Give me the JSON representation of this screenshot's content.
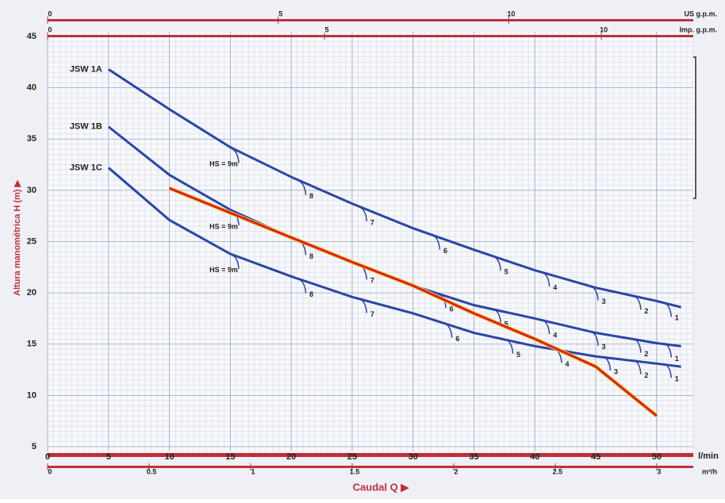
{
  "chart_data": {
    "type": "line",
    "y_label": "Altura manométrica H (m) ▶",
    "x_label": "Caudal Q ▶",
    "x_unit": "l/min",
    "xlim": [
      0,
      53
    ],
    "xticks": [
      0,
      5,
      10,
      15,
      20,
      25,
      30,
      35,
      40,
      45,
      50
    ],
    "ylim": [
      5,
      45
    ],
    "yticks": [
      5,
      10,
      15,
      20,
      25,
      30,
      35,
      40,
      45
    ],
    "grid": true,
    "x": [
      5,
      10,
      15,
      20,
      25,
      30,
      35,
      40,
      45,
      50,
      52
    ],
    "series": [
      {
        "name": "JSW 1A",
        "color": "#2b46a6",
        "values": [
          41.8,
          37.9,
          34.2,
          31.3,
          28.7,
          26.3,
          24.2,
          22.2,
          20.5,
          19.2,
          18.6
        ],
        "depths": [
          {
            "x": 15.5,
            "label": "HS = 9m"
          },
          {
            "x": 21,
            "label": "8"
          },
          {
            "x": 26,
            "label": "7"
          },
          {
            "x": 32,
            "label": "6"
          },
          {
            "x": 37,
            "label": "5"
          },
          {
            "x": 41,
            "label": "4"
          },
          {
            "x": 45,
            "label": "3"
          },
          {
            "x": 48.5,
            "label": "2"
          },
          {
            "x": 51,
            "label": "1"
          }
        ]
      },
      {
        "name": "JSW 1B",
        "color": "#2b46a6",
        "values": [
          36.2,
          31.5,
          28.1,
          25.4,
          23.0,
          20.7,
          18.8,
          17.5,
          16.1,
          15.1,
          14.8
        ],
        "depths": [
          {
            "x": 15.5,
            "label": "HS = 9m"
          },
          {
            "x": 21,
            "label": "8"
          },
          {
            "x": 26,
            "label": "7"
          },
          {
            "x": 32.5,
            "label": "6"
          },
          {
            "x": 37,
            "label": "5"
          },
          {
            "x": 41,
            "label": "4"
          },
          {
            "x": 45,
            "label": "3"
          },
          {
            "x": 48.5,
            "label": "2"
          },
          {
            "x": 51,
            "label": "1"
          }
        ]
      },
      {
        "name": "JSW 1C",
        "color": "#2b46a6",
        "values": [
          32.2,
          27.1,
          23.8,
          21.6,
          19.6,
          18.0,
          16.1,
          14.8,
          13.8,
          13.1,
          12.8
        ],
        "depths": [
          {
            "x": 15.5,
            "label": "HS = 9m"
          },
          {
            "x": 21,
            "label": "8"
          },
          {
            "x": 26,
            "label": "7"
          },
          {
            "x": 33,
            "label": "6"
          },
          {
            "x": 38,
            "label": "5"
          },
          {
            "x": 42,
            "label": "4"
          },
          {
            "x": 46,
            "label": "3"
          },
          {
            "x": 48.5,
            "label": "2"
          },
          {
            "x": 51,
            "label": "1"
          }
        ]
      },
      {
        "color": "#e0201c",
        "values": [
          null,
          30.2,
          27.8,
          25.4,
          23.0,
          20.7,
          18.0,
          15.5,
          12.8,
          8.0,
          null
        ]
      }
    ],
    "secondary_axes": [
      {
        "label": "US g.p.m.",
        "position": "top",
        "lim": [
          0,
          14.0
        ],
        "ticks": [
          0,
          5,
          10
        ]
      },
      {
        "label": "Imp. g.p.m.",
        "position": "top",
        "lim": [
          0,
          11.66
        ],
        "ticks": [
          0,
          5,
          10
        ]
      },
      {
        "label": "m³/h",
        "position": "bottom",
        "lim": [
          0,
          3.18
        ],
        "ticks": [
          0,
          0.5,
          1,
          1.5,
          2,
          2.5,
          3
        ]
      }
    ]
  }
}
